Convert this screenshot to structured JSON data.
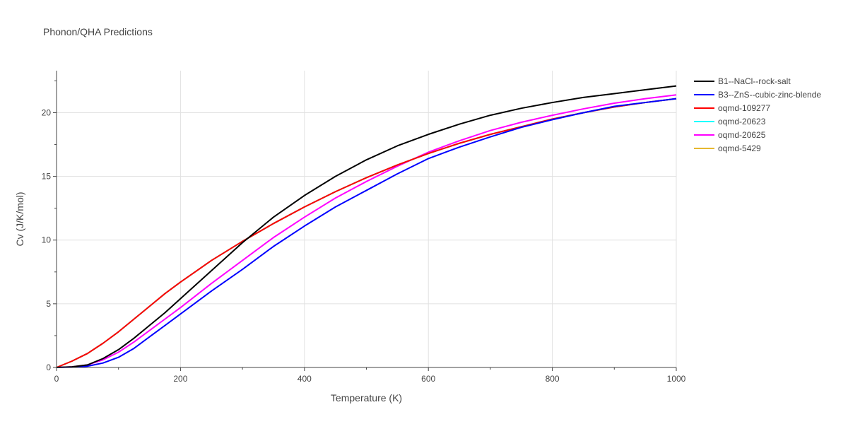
{
  "chart_data": {
    "type": "line",
    "title": "Phonon/QHA Predictions",
    "xlabel": "Temperature (K)",
    "ylabel": "Cv (J/K/mol)",
    "xlim": [
      0,
      1000
    ],
    "ylim": [
      0,
      23.3
    ],
    "xticks": [
      0,
      200,
      400,
      600,
      800,
      1000
    ],
    "yticks": [
      0,
      5,
      10,
      15,
      20
    ],
    "grid": true,
    "legend_position": "top-right",
    "series": [
      {
        "name": "B1--NaCl--rock-salt",
        "color": "#000000",
        "x": [
          0,
          25,
          50,
          75,
          100,
          125,
          150,
          175,
          200,
          250,
          300,
          350,
          400,
          450,
          500,
          550,
          600,
          650,
          700,
          750,
          800,
          850,
          900,
          950,
          1000
        ],
        "y": [
          0,
          0.05,
          0.2,
          0.7,
          1.4,
          2.3,
          3.3,
          4.3,
          5.4,
          7.6,
          9.8,
          11.8,
          13.5,
          15.0,
          16.3,
          17.4,
          18.3,
          19.1,
          19.8,
          20.35,
          20.8,
          21.2,
          21.5,
          21.8,
          22.1
        ]
      },
      {
        "name": "B3--ZnS--cubic-zinc-blende",
        "color": "#0000ff",
        "x": [
          0,
          25,
          50,
          75,
          100,
          125,
          150,
          175,
          200,
          250,
          300,
          350,
          400,
          450,
          500,
          550,
          600,
          650,
          700,
          750,
          800,
          850,
          900,
          950,
          1000
        ],
        "y": [
          0,
          0.02,
          0.1,
          0.35,
          0.8,
          1.5,
          2.4,
          3.3,
          4.2,
          6.0,
          7.7,
          9.5,
          11.1,
          12.6,
          13.9,
          15.2,
          16.4,
          17.3,
          18.1,
          18.85,
          19.45,
          20.0,
          20.5,
          20.8,
          21.1
        ]
      },
      {
        "name": "oqmd-109277",
        "color": "#ff0000",
        "x": [
          0,
          25,
          50,
          75,
          100,
          125,
          150,
          175,
          200,
          250,
          300,
          350,
          400,
          450,
          500,
          550,
          600,
          650,
          700,
          750,
          800,
          850,
          900,
          950,
          1000
        ],
        "y": [
          0,
          0.5,
          1.1,
          1.9,
          2.8,
          3.8,
          4.8,
          5.8,
          6.7,
          8.4,
          9.9,
          11.3,
          12.6,
          13.8,
          14.9,
          15.9,
          16.8,
          17.6,
          18.3,
          18.9,
          19.5,
          20.0,
          20.45,
          20.8,
          21.1
        ]
      },
      {
        "name": "oqmd-20623",
        "color": "#00ffff",
        "x": [
          0,
          25,
          50,
          75,
          100,
          125,
          150,
          175,
          200,
          250,
          300,
          350,
          400,
          450,
          500,
          550,
          600,
          650,
          700,
          750,
          800,
          850,
          900,
          950,
          1000
        ],
        "y": [
          0,
          0.5,
          1.1,
          1.9,
          2.8,
          3.8,
          4.8,
          5.8,
          6.7,
          8.4,
          9.9,
          11.3,
          12.6,
          13.8,
          14.9,
          15.9,
          16.8,
          17.6,
          18.3,
          18.9,
          19.5,
          20.0,
          20.45,
          20.8,
          21.1
        ]
      },
      {
        "name": "oqmd-20625",
        "color": "#ff00ff",
        "x": [
          0,
          25,
          50,
          75,
          100,
          125,
          150,
          175,
          200,
          250,
          300,
          350,
          400,
          450,
          500,
          550,
          600,
          650,
          700,
          750,
          800,
          850,
          900,
          950,
          1000
        ],
        "y": [
          0,
          0.05,
          0.2,
          0.6,
          1.2,
          2.0,
          2.9,
          3.8,
          4.7,
          6.6,
          8.4,
          10.2,
          11.8,
          13.3,
          14.6,
          15.8,
          16.9,
          17.8,
          18.6,
          19.25,
          19.8,
          20.3,
          20.75,
          21.1,
          21.4
        ]
      },
      {
        "name": "oqmd-5429",
        "color": "#e6b830",
        "x": [
          0,
          25,
          50,
          75,
          100,
          125,
          150,
          175,
          200,
          250,
          300,
          350,
          400,
          450,
          500,
          550,
          600,
          650,
          700,
          750,
          800,
          850,
          900,
          950,
          1000
        ],
        "y": [
          0,
          0.5,
          1.1,
          1.9,
          2.8,
          3.8,
          4.8,
          5.8,
          6.7,
          8.4,
          9.9,
          11.3,
          12.6,
          13.8,
          14.9,
          15.9,
          16.8,
          17.6,
          18.3,
          18.9,
          19.5,
          20.0,
          20.45,
          20.8,
          21.1
        ]
      }
    ]
  }
}
